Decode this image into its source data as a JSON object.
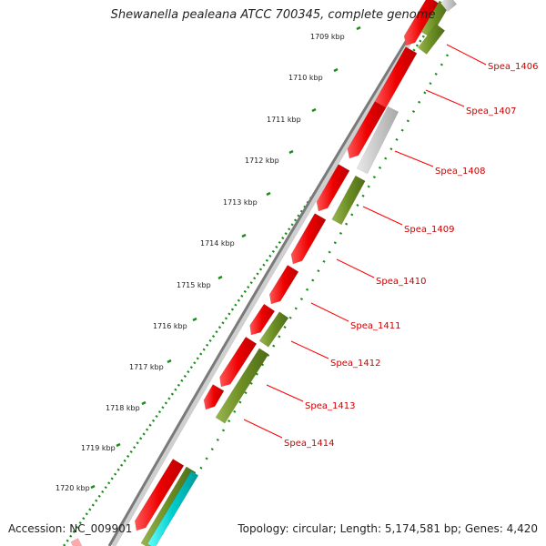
{
  "title": "Shewanella pealeana ATCC 700345, complete genome",
  "accession": "Accession: NC_009901",
  "genome_info": "Topology: circular; Length: 5,174,581 bp; Genes: 4,420",
  "colors": {
    "forward_gene": "#ff0000",
    "reverse_gene": "#6b8e23",
    "unknown_gene": "#c8c8c8",
    "rna_gene": "#00cccc",
    "backbone": "#808080",
    "ticks": "#1a8c1a",
    "label": "#cc0000"
  },
  "ticks": [
    {
      "label": "1709 kbp"
    },
    {
      "label": "1710 kbp"
    },
    {
      "label": "1711 kbp"
    },
    {
      "label": "1712 kbp"
    },
    {
      "label": "1713 kbp"
    },
    {
      "label": "1714 kbp"
    },
    {
      "label": "1715 kbp"
    },
    {
      "label": "1716 kbp"
    },
    {
      "label": "1717 kbp"
    },
    {
      "label": "1718 kbp"
    },
    {
      "label": "1719 kbp"
    },
    {
      "label": "1720 kbp"
    }
  ],
  "genes": [
    {
      "label": "Spea_1406"
    },
    {
      "label": "Spea_1407"
    },
    {
      "label": "Spea_1408"
    },
    {
      "label": "Spea_1409"
    },
    {
      "label": "Spea_1410"
    },
    {
      "label": "Spea_1411"
    },
    {
      "label": "Spea_1412"
    },
    {
      "label": "Spea_1413"
    },
    {
      "label": "Spea_1414"
    }
  ]
}
